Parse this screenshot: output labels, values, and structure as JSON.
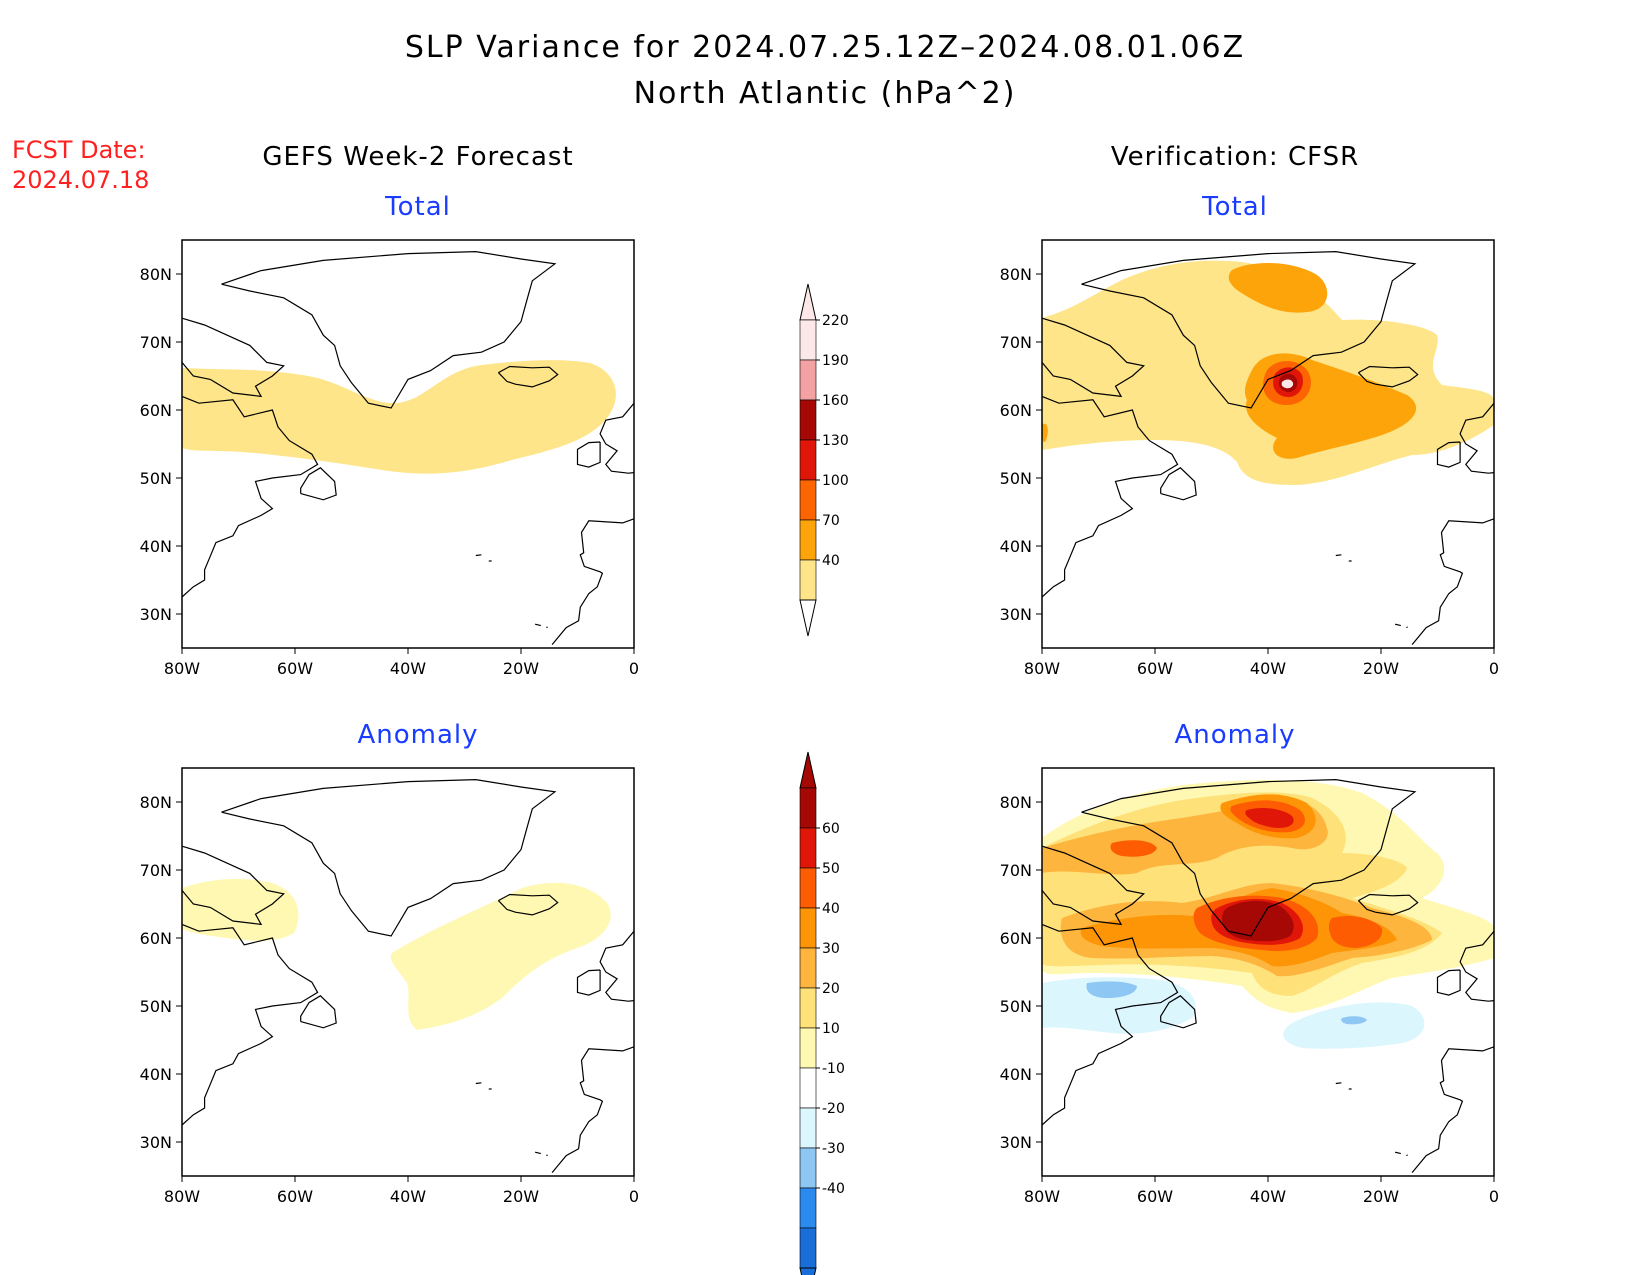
{
  "title": "SLP Variance for 2024.07.25.12Z–2024.08.01.06Z",
  "subtitle": "North Atlantic (hPa^2)",
  "forecast_date_label": "FCST Date:",
  "forecast_date_value": "2024.07.18",
  "columns": {
    "left_title": "GEFS Week-2 Forecast",
    "right_title": "Verification: CFSR"
  },
  "panels": {
    "top_left_subtitle": "Total",
    "top_right_subtitle": "Total",
    "bottom_left_subtitle": "Anomaly",
    "bottom_right_subtitle": "Anomaly"
  },
  "axes": {
    "lon_ticks": [
      "80W",
      "60W",
      "40W",
      "20W",
      "0"
    ],
    "lat_ticks": [
      "80N",
      "70N",
      "60N",
      "50N",
      "40N",
      "30N"
    ],
    "lon_range": [
      -80,
      0
    ],
    "lat_range": [
      25,
      85
    ]
  },
  "total_colorbar": {
    "labels": [
      "40",
      "70",
      "100",
      "130",
      "160",
      "190",
      "220"
    ],
    "colors": [
      "#fee58a",
      "#fda40a",
      "#fd6402",
      "#e01708",
      "#a50805",
      "#f4a1a3",
      "#fde8e8"
    ]
  },
  "anomaly_colorbar": {
    "labels": [
      "-40",
      "-30",
      "-20",
      "-10",
      "10",
      "20",
      "30",
      "40",
      "50",
      "60"
    ],
    "colors": [
      "#1a6ed8",
      "#2a8aee",
      "#8ec6f4",
      "#dcf6fe",
      "#ffffff",
      "#fff8b2",
      "#fee178",
      "#fdb53e",
      "#fd9506",
      "#fd5c02",
      "#e01708",
      "#a50805"
    ]
  },
  "colors": {
    "forecast_date": "#ff2020",
    "panel_subtitle": "#1a3cff"
  }
}
